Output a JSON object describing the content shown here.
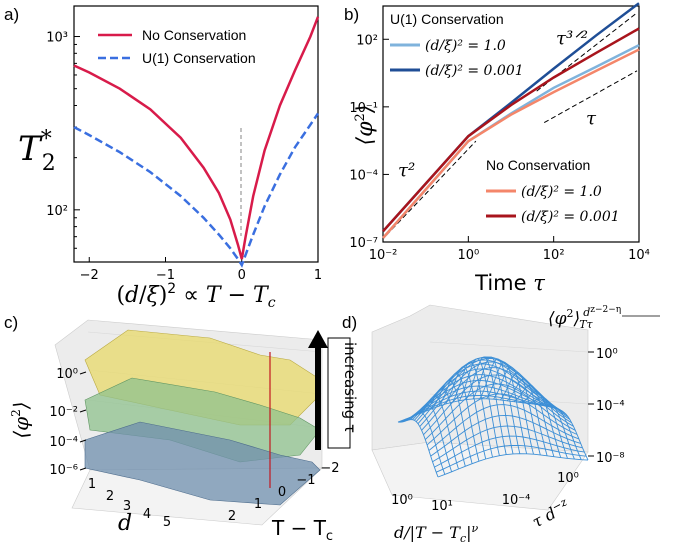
{
  "chart_data": [
    {
      "panel": "a)",
      "type": "line",
      "xlabel": "(d/ξ)² ∝ T − T_c",
      "ylabel": "T*₂",
      "yscale": "log",
      "xlim": [
        -2.2,
        1.0
      ],
      "ylim": [
        50,
        1500
      ],
      "xticks": [
        "−2",
        "−1",
        "0",
        "1"
      ],
      "yticks": [
        "10²",
        "10³"
      ],
      "legend_position": "top-right",
      "series": [
        {
          "name": "No Conservation",
          "color": "#d81b4a",
          "style": "solid",
          "x": [
            -2.2,
            -2.0,
            -1.6,
            -1.2,
            -0.8,
            -0.5,
            -0.3,
            -0.15,
            -0.05,
            0.0,
            0.05,
            0.15,
            0.3,
            0.5,
            0.7,
            0.9,
            1.0
          ],
          "y": [
            680,
            620,
            500,
            380,
            260,
            175,
            125,
            88,
            63,
            52,
            70,
            120,
            220,
            400,
            640,
            1000,
            1300
          ]
        },
        {
          "name": "U(1) Conservation",
          "color": "#3a6fe0",
          "style": "dashed",
          "x": [
            -2.2,
            -2.0,
            -1.6,
            -1.2,
            -0.8,
            -0.5,
            -0.3,
            -0.15,
            -0.05,
            0.0,
            0.05,
            0.15,
            0.3,
            0.5,
            0.7,
            0.9,
            1.0
          ],
          "y": [
            300,
            270,
            215,
            165,
            120,
            90,
            72,
            60,
            52,
            48,
            55,
            72,
            105,
            160,
            230,
            310,
            360
          ]
        }
      ]
    },
    {
      "panel": "b)",
      "type": "line",
      "xlabel": "Time τ",
      "ylabel": "⟨φ²⟩",
      "xscale": "log",
      "yscale": "log",
      "xlim": [
        0.01,
        10000
      ],
      "ylim": [
        1e-07,
        3000
      ],
      "xticks": [
        "10⁻²",
        "10⁰",
        "10²",
        "10⁴"
      ],
      "yticks": [
        "10⁻⁷",
        "10⁻⁴",
        "10⁻¹",
        "10²"
      ],
      "legend_groups": [
        "U(1) Conservation",
        "No Conservation"
      ],
      "series": [
        {
          "name": "(d/ξ)² = 1.0",
          "group": "U(1) Conservation",
          "color": "#7fb3dc",
          "x": [
            0.01,
            1,
            10,
            100,
            1000,
            10000
          ],
          "y": [
            1.5e-07,
            0.003,
            0.05,
            0.7,
            6,
            55
          ]
        },
        {
          "name": "(d/ξ)² = 0.001",
          "group": "U(1) Conservation",
          "color": "#1f4e96",
          "x": [
            0.01,
            1,
            10,
            100,
            1000,
            10000
          ],
          "y": [
            3e-07,
            0.005,
            0.15,
            5,
            150,
            4000
          ]
        },
        {
          "name": "(d/ξ)² = 1.0",
          "group": "No Conservation",
          "color": "#f4866a",
          "x": [
            0.01,
            1,
            10,
            100,
            1000,
            10000
          ],
          "y": [
            1.5e-07,
            0.003,
            0.045,
            0.45,
            4,
            35
          ]
        },
        {
          "name": "(d/ξ)² = 0.001",
          "group": "No Conservation",
          "color": "#a8141c",
          "x": [
            0.01,
            1,
            10,
            100,
            1000,
            10000
          ],
          "y": [
            3e-07,
            0.005,
            0.12,
            2,
            25,
            300
          ]
        }
      ],
      "annotations": [
        "τ³ᐟ²",
        "τ",
        "τ²"
      ]
    },
    {
      "panel": "c)",
      "type": "surface3d",
      "xlabel": "d",
      "ylabel": "T − T_c",
      "zlabel": "⟨φ²⟩",
      "xticks": [
        "1",
        "2",
        "3",
        "4",
        "5"
      ],
      "yticks": [
        "2",
        "1",
        "0",
        "−1",
        "−2"
      ],
      "zticks": [
        "10⁰",
        "10⁻²",
        "10⁻⁴",
        "10⁻⁶"
      ],
      "arrow_label": "increasing τ",
      "surfaces": [
        {
          "color": "#e8d96a",
          "level": 0
        },
        {
          "color": "#8fc28e",
          "level": 1
        },
        {
          "color": "#6f8fae",
          "level": 2
        }
      ]
    },
    {
      "panel": "d)",
      "type": "surface3d",
      "xlabel": "d/|T − T_c|^ν",
      "ylabel": "τ d⁻ᶻ",
      "zlabel": "⟨φ²⟩ d^(z−2−η)/(Tτ)",
      "xticks": [
        "10⁰",
        "10¹"
      ],
      "yticks": [
        "10⁻⁴",
        "10⁰"
      ],
      "zticks": [
        "10⁰",
        "10⁻⁴",
        "10⁻⁸"
      ],
      "mesh_color": "#3d8fd6"
    }
  ]
}
